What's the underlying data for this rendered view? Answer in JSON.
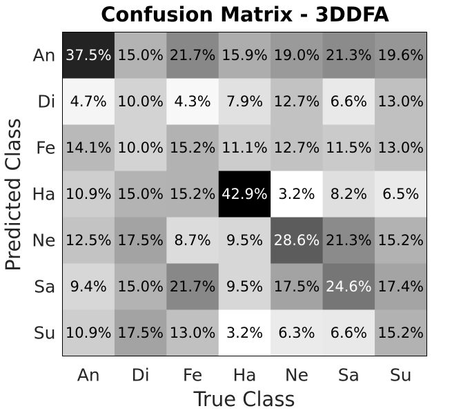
{
  "chart_data": {
    "type": "heatmap",
    "title": "Confusion Matrix - 3DDFA",
    "xlabel": "True Class",
    "ylabel": "Predicted Class",
    "x_categories": [
      "An",
      "Di",
      "Fe",
      "Ha",
      "Ne",
      "Sa",
      "Su"
    ],
    "y_categories": [
      "An",
      "Di",
      "Fe",
      "Ha",
      "Ne",
      "Sa",
      "Su"
    ],
    "values": [
      [
        37.5,
        15.0,
        21.7,
        15.9,
        19.0,
        21.3,
        19.6
      ],
      [
        4.7,
        10.0,
        4.3,
        7.9,
        12.7,
        6.6,
        13.0
      ],
      [
        14.1,
        10.0,
        15.2,
        11.1,
        12.7,
        11.5,
        13.0
      ],
      [
        10.9,
        15.0,
        15.2,
        42.9,
        3.2,
        8.2,
        6.5
      ],
      [
        12.5,
        17.5,
        8.7,
        9.5,
        28.6,
        21.3,
        15.2
      ],
      [
        9.4,
        15.0,
        21.7,
        9.5,
        17.5,
        24.6,
        17.4
      ],
      [
        10.9,
        17.5,
        13.0,
        3.2,
        6.3,
        6.6,
        15.2
      ]
    ],
    "labels": [
      [
        "37.5%",
        "15.0%",
        "21.7%",
        "15.9%",
        "19.0%",
        "21.3%",
        "19.6%"
      ],
      [
        "4.7%",
        "10.0%",
        "4.3%",
        "7.9%",
        "12.7%",
        "6.6%",
        "13.0%"
      ],
      [
        "14.1%",
        "10.0%",
        "15.2%",
        "11.1%",
        "12.7%",
        "11.5%",
        "13.0%"
      ],
      [
        "10.9%",
        "15.0%",
        "15.2%",
        "42.9%",
        "3.2%",
        "8.2%",
        "6.5%"
      ],
      [
        "12.5%",
        "17.5%",
        "8.7%",
        "9.5%",
        "28.6%",
        "21.3%",
        "15.2%"
      ],
      [
        "9.4%",
        "15.0%",
        "21.7%",
        "9.5%",
        "17.5%",
        "24.6%",
        "17.4%"
      ],
      [
        "10.9%",
        "17.5%",
        "13.0%",
        "3.2%",
        "6.3%",
        "6.6%",
        "15.2%"
      ]
    ],
    "colormap": "gray_r",
    "color_range": [
      3.2,
      42.9
    ],
    "grid": false
  },
  "colors": {
    "title": "#000000",
    "axis_text": "#262626",
    "frame": "#000000",
    "light_text": "#ffffff",
    "dark_text": "#000000"
  }
}
